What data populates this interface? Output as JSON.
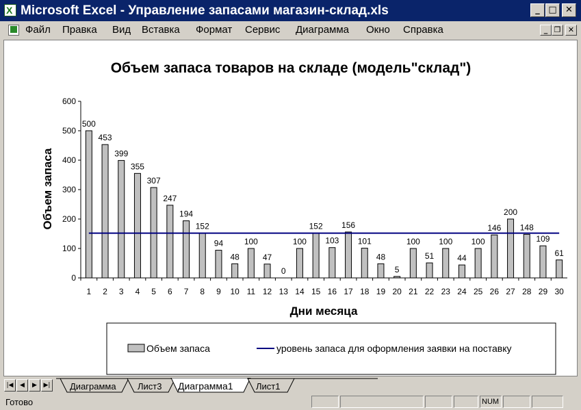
{
  "window": {
    "title": "Microsoft Excel - Управление запасами магазин-склад.xls"
  },
  "menu": {
    "items": [
      "Файл",
      "Правка",
      "Вид",
      "Вставка",
      "Формат",
      "Сервис",
      "Диаграмма",
      "Окно",
      "Справка"
    ]
  },
  "tabs": [
    "Диаграмма",
    "Лист3",
    "Диаграмма1",
    "Лист1"
  ],
  "active_tab": "Диаграмма1",
  "status": {
    "text": "Готово",
    "num": "NUM"
  },
  "chart_data": {
    "type": "bar",
    "title": "Объем запаса товаров на складе (модель\"склад\")",
    "xlabel": "Дни месяца",
    "ylabel": "Объем запаса",
    "ylim": [
      0,
      600
    ],
    "yticks": [
      0,
      100,
      200,
      300,
      400,
      500,
      600
    ],
    "categories": [
      "1",
      "2",
      "3",
      "4",
      "5",
      "6",
      "7",
      "8",
      "9",
      "10",
      "11",
      "12",
      "13",
      "14",
      "15",
      "16",
      "17",
      "18",
      "19",
      "20",
      "21",
      "22",
      "23",
      "24",
      "25",
      "26",
      "27",
      "28",
      "29",
      "30"
    ],
    "series": [
      {
        "name": "Объем запаса",
        "type": "bar",
        "color": "#c0c0c0",
        "values": [
          500,
          453,
          399,
          355,
          307,
          247,
          194,
          152,
          94,
          48,
          100,
          47,
          0,
          100,
          152,
          103,
          156,
          101,
          48,
          5,
          100,
          51,
          100,
          44,
          100,
          146,
          200,
          148,
          109,
          61
        ]
      },
      {
        "name": "уровень запаса для оформления заявки на поставку",
        "type": "line",
        "color": "#000080",
        "values": [
          152,
          152,
          152,
          152,
          152,
          152,
          152,
          152,
          152,
          152,
          152,
          152,
          152,
          152,
          152,
          152,
          152,
          152,
          152,
          152,
          152,
          152,
          152,
          152,
          152,
          152,
          152,
          152,
          152,
          152
        ]
      }
    ],
    "legend": "bottom",
    "grid": false
  }
}
